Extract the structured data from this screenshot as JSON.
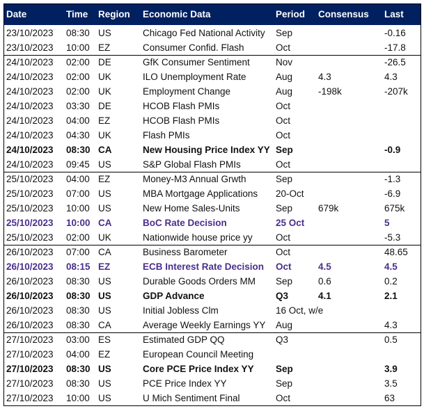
{
  "table": {
    "header": [
      "Date",
      "Time",
      "Region",
      "Economic Data",
      "Period",
      "Consensus",
      "Last"
    ],
    "rows": [
      {
        "cells": [
          "23/10/2023",
          "08:30",
          "US",
          "Chicago Fed National Activity",
          "Sep",
          null,
          "-0.16"
        ],
        "style": "normal"
      },
      {
        "cells": [
          "23/10/2023",
          "10:00",
          "EZ",
          "Consumer Confid. Flash",
          "Oct",
          null,
          "-17.8"
        ],
        "style": "normal"
      },
      {
        "cells": [
          "24/10/2023",
          "02:00",
          "DE",
          "GfK Consumer Sentiment",
          "Nov",
          null,
          "-26.5"
        ],
        "style": "normal"
      },
      {
        "cells": [
          "24/10/2023",
          "02:00",
          "UK",
          "ILO Unemployment Rate",
          "Aug",
          "4.3",
          "4.3"
        ],
        "style": "normal"
      },
      {
        "cells": [
          "24/10/2023",
          "02:00",
          "UK",
          "Employment Change",
          "Aug",
          "-198k",
          "-207k"
        ],
        "style": "normal"
      },
      {
        "cells": [
          "24/10/2023",
          "03:30",
          "DE",
          "HCOB Flash PMIs",
          "Oct",
          null,
          null
        ],
        "style": "normal"
      },
      {
        "cells": [
          "24/10/2023",
          "04:00",
          "EZ",
          "HCOB Flash PMIs",
          "Oct",
          null,
          null
        ],
        "style": "normal"
      },
      {
        "cells": [
          "24/10/2023",
          "04:30",
          "UK",
          "Flash PMIs",
          "Oct",
          null,
          null
        ],
        "style": "normal"
      },
      {
        "cells": [
          "24/10/2023",
          "08:30",
          "CA",
          "New Housing Price Index YY",
          "Sep",
          null,
          "-0.9"
        ],
        "style": "bold"
      },
      {
        "cells": [
          "24/10/2023",
          "09:45",
          "US",
          "S&P Global Flash PMIs",
          "Oct",
          null,
          null
        ],
        "style": "normal"
      },
      {
        "cells": [
          "25/10/2023",
          "04:00",
          "EZ",
          "Money-M3 Annual Grwth",
          "Sep",
          null,
          "-1.3"
        ],
        "style": "normal"
      },
      {
        "cells": [
          "25/10/2023",
          "07:00",
          "US",
          "MBA Mortgage Applications",
          "20-Oct",
          null,
          "-6.9"
        ],
        "style": "normal"
      },
      {
        "cells": [
          "25/10/2023",
          "10:00",
          "US",
          "New Home Sales-Units",
          "Sep",
          "679k",
          "675k"
        ],
        "style": "normal"
      },
      {
        "cells": [
          "25/10/2023",
          "10:00",
          "CA",
          "BoC Rate Decision",
          "25 Oct",
          null,
          "5"
        ],
        "style": "accent"
      },
      {
        "cells": [
          "25/10/2023",
          "02:00",
          "UK",
          "Nationwide house price yy",
          "Oct",
          null,
          "-5.3"
        ],
        "style": "normal"
      },
      {
        "cells": [
          "26/10/2023",
          "07:00",
          "CA",
          "Business Barometer",
          "Oct",
          null,
          "48.65"
        ],
        "style": "normal"
      },
      {
        "cells": [
          "26/10/2023",
          "08:15",
          "EZ",
          "ECB Interest Rate Decision",
          "Oct",
          "4.5",
          "4.5"
        ],
        "style": "accent"
      },
      {
        "cells": [
          "26/10/2023",
          "08:30",
          "US",
          "Durable Goods Orders MM",
          "Sep",
          "0.6",
          "0.2"
        ],
        "style": "normal"
      },
      {
        "cells": [
          "26/10/2023",
          "08:30",
          "US",
          "GDP Advance",
          "Q3",
          "4.1",
          "2.1"
        ],
        "style": "bold"
      },
      {
        "cells": [
          "26/10/2023",
          "08:30",
          "US",
          "Initial Jobless Clm",
          "16 Oct, w/e",
          null,
          null
        ],
        "style": "normal"
      },
      {
        "cells": [
          "26/10/2023",
          "08:30",
          "CA",
          "Average Weekly Earnings YY",
          "Aug",
          null,
          "4.3"
        ],
        "style": "normal"
      },
      {
        "cells": [
          "27/10/2023",
          "03:00",
          "ES",
          "Estimated GDP QQ",
          "Q3",
          null,
          "0.5"
        ],
        "style": "normal"
      },
      {
        "cells": [
          "27/10/2023",
          "04:00",
          "EZ",
          "European Council Meeting",
          null,
          null,
          null
        ],
        "style": "normal"
      },
      {
        "cells": [
          "27/10/2023",
          "08:30",
          "US",
          "Core PCE Price Index YY",
          "Sep",
          null,
          "3.9"
        ],
        "style": "bold"
      },
      {
        "cells": [
          "27/10/2023",
          "08:30",
          "US",
          "PCE Price Index YY",
          "Sep",
          null,
          "3.5"
        ],
        "style": "normal"
      },
      {
        "cells": [
          "27/10/2023",
          "10:00",
          "US",
          "U Mich Sentiment Final",
          "Oct",
          null,
          "63"
        ],
        "style": "normal"
      }
    ]
  }
}
